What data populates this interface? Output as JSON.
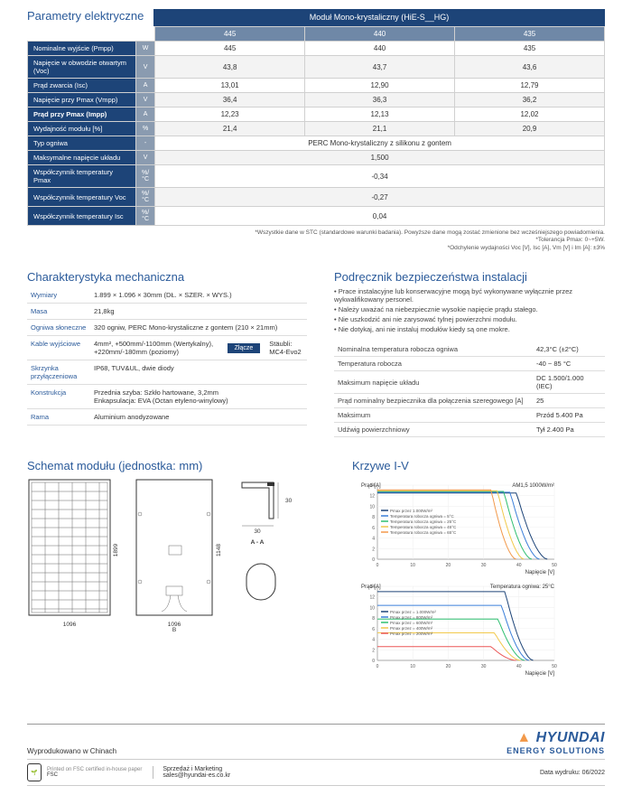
{
  "elec": {
    "section_title": "Parametry elektryczne",
    "main_header": "Moduł Mono-krystaliczny (HiE-S__HG)",
    "col_headers": [
      "445",
      "440",
      "435"
    ],
    "rows": [
      {
        "label": "Nominalne wyjście (Pmpp)",
        "unit": "W",
        "v": [
          "445",
          "440",
          "435"
        ]
      },
      {
        "label": "Napięcie w obwodzie otwartym (Voc)",
        "unit": "V",
        "v": [
          "43,8",
          "43,7",
          "43,6"
        ]
      },
      {
        "label": "Prąd zwarcia (Isc)",
        "unit": "A",
        "v": [
          "13,01",
          "12,90",
          "12,79"
        ]
      },
      {
        "label": "Napięcie przy Pmax (Vmpp)",
        "unit": "V",
        "v": [
          "36,4",
          "36,3",
          "36,2"
        ]
      },
      {
        "label": "Prąd przy Pmax (Impp)",
        "unit": "A",
        "v": [
          "12,23",
          "12,13",
          "12,02"
        ]
      },
      {
        "label": "Wydajność modułu [%]",
        "unit": "%",
        "v": [
          "21,4",
          "21,1",
          "20,9"
        ]
      },
      {
        "label": "Typ ogniwa",
        "unit": "-",
        "span": "PERC Mono-krystaliczny z silikonu z gontem"
      },
      {
        "label": "Maksymalne napięcie układu",
        "unit": "V",
        "span": "1,500"
      },
      {
        "label": "Współczynnik temperatury Pmax",
        "unit": "%/°C",
        "span": "-0,34"
      },
      {
        "label": "Współczynnik temperatury Voc",
        "unit": "%/°C",
        "span": "-0,27"
      },
      {
        "label": "Współczynnik temperatury Isc",
        "unit": "%/°C",
        "span": "0,04"
      }
    ],
    "footnotes": [
      "*Wszystkie dane w STC (standardowe warunki badania). Powyższe dane mogą zostać zmienione bez wcześniejszego powiadomienia.",
      "*Tolerancja Pmax: 0~+5W.",
      "*Odchylenie wydajności Voc [V], Isc [A], Vm [V] i Im [A]: ±3%"
    ]
  },
  "mech": {
    "title": "Charakterystyka mechaniczna",
    "rows": [
      {
        "label": "Wymiary",
        "value": "1.899 × 1.096 × 30mm (DŁ. × SZER. × WYS.)"
      },
      {
        "label": "Masa",
        "value": "21,8kg"
      },
      {
        "label": "Ogniwa słoneczne",
        "value": "320 ogniw, PERC Mono-krystaliczne z gontem (210 × 21mm)"
      },
      {
        "label": "Kable wyjściowe",
        "value": "4mm², +500mm/-1100mm (Wertykalny), +220mm/-180mm (poziomy)",
        "conn_label": "Złącze",
        "conn_value": "Stäubli: MC4-Evo2"
      },
      {
        "label": "Skrzynka przyłączeniowa",
        "value": "IP68, TUV&UL, dwie diody"
      },
      {
        "label": "Konstrukcja",
        "value": "Przednia szyba: Szkło hartowane, 3,2mm\nEnkapsulacja: EVA (Octan etyleno-winylowy)"
      },
      {
        "label": "Rama",
        "value": "Aluminium anodyzowane"
      }
    ]
  },
  "safety": {
    "title": "Podręcznik bezpieczeństwa instalacji",
    "items": [
      "Prace instalacyjne lub konserwacyjne mogą być wykonywane wyłącznie przez wykwalifikowany personel.",
      "Należy uważać na niebezpiecznie wysokie napięcie prądu stałego.",
      "Nie uszkodzić ani nie zarysować tylnej powierzchni modułu.",
      "Nie dotykaj, ani nie instaluj modułów kiedy są one mokre."
    ],
    "cond": [
      {
        "l": "Nominalna temperatura robocza ogniwa",
        "r": "42,3°C (±2°C)"
      },
      {
        "l": "Temperatura robocza",
        "r": "-40 ~ 85 °C"
      },
      {
        "l": "Maksimum napięcie układu",
        "r": "DC 1.500/1.000 (IEC)"
      },
      {
        "l": "Prąd nominalny bezpiecznika dla połączenia szeregowego [A]",
        "r": "25"
      },
      {
        "l": "Maksimum",
        "r": "Przód 5.400 Pa"
      },
      {
        "l": "Udźwig powierzchniowy",
        "r": "Tył 2.400 Pa"
      }
    ]
  },
  "diagram": {
    "title": "Schemat modułu (jednostka: mm)",
    "width_label": "1096",
    "height_label": "1899",
    "back_width": "1096",
    "back_height": "1148",
    "section_label_a": "A - A",
    "section_label_b": "B",
    "section_dim": "30",
    "section_w": "30"
  },
  "iv": {
    "title": "Krzywe I-V",
    "chart1": {
      "ylabel": "Prąd [A]",
      "title_right": "AM1,5 1000W/m²",
      "xlabel": "Napięcie [V]",
      "ymax": 14,
      "xmax": 50,
      "legend": [
        "Pmax przez 1.000W/m²",
        "Temperatura robocza ogniwa = 5°C",
        "Temperatura robocza ogniwa = 25°C",
        "Temperatura robocza ogniwa = 45°C",
        "Temperatura robocza ogniwa = 65°C"
      ],
      "colors": [
        "#1d4478",
        "#3b7fd9",
        "#2fbf71",
        "#f2c94c",
        "#f2994a"
      ]
    },
    "chart2": {
      "ylabel": "Prąd [A]",
      "title_right": "Temperatura ogniwa: 25°C",
      "xlabel": "Napięcie [V]",
      "ymax": 14,
      "xmax": 50,
      "legend": [
        "Pmax przez = 1.000W/m²",
        "Pmax przez = 800W/m²",
        "Pmax przez = 600W/m²",
        "Pmax przez = 400W/m²",
        "Pmax przez = 200W/m²"
      ],
      "colors": [
        "#1d4478",
        "#3b7fd9",
        "#2fbf71",
        "#f2c94c",
        "#eb5757"
      ]
    }
  },
  "footer": {
    "made_in": "Wyprodukowano w Chinach",
    "brand_main": "HYUNDAI",
    "brand_sub": "ENERGY SOLUTIONS",
    "fsc_text": "Printed on FSC certified in-house paper",
    "fsc_label": "FSC",
    "contact_title": "Sprzedaż i Marketing",
    "contact_email": "sales@hyundai-es.co.kr",
    "date": "Data wydruku: 06/2022"
  }
}
